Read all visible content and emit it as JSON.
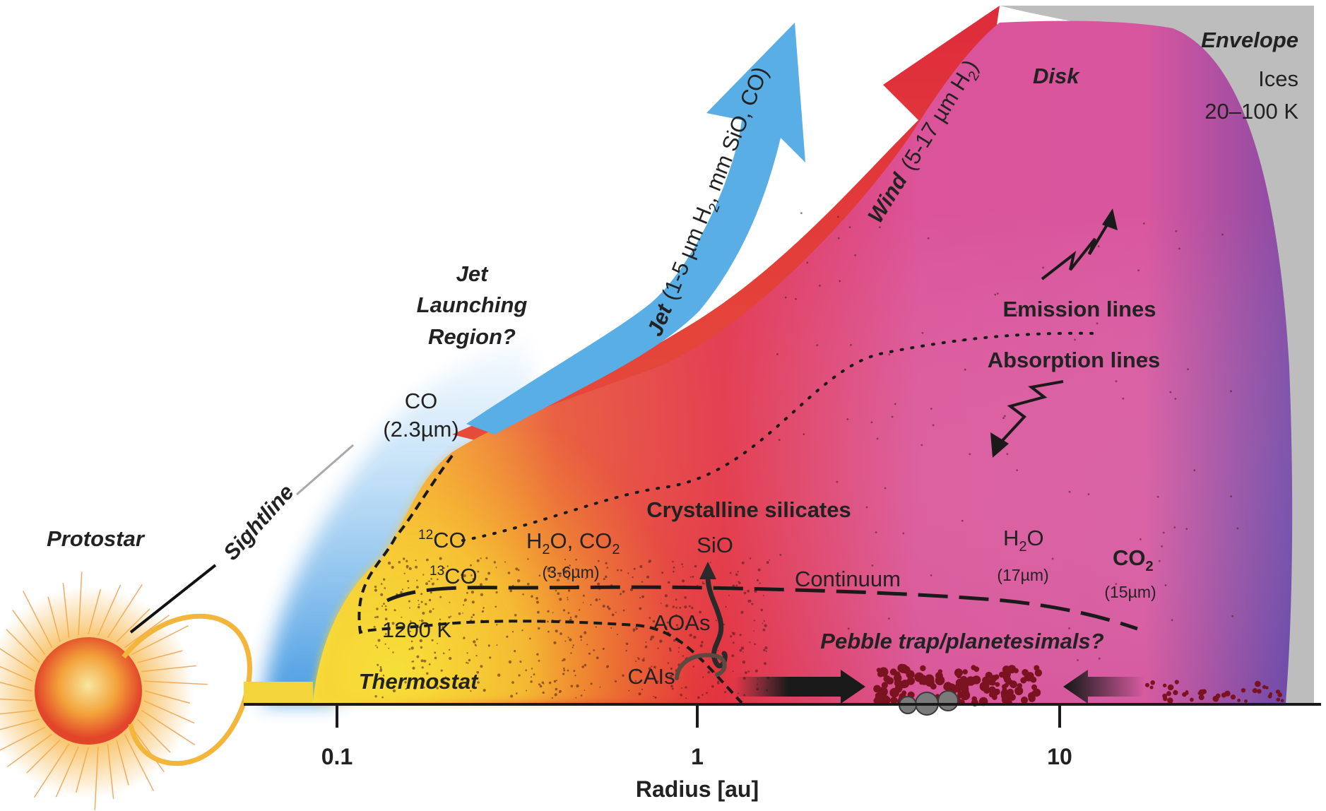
{
  "labels": {
    "envelope": "Envelope",
    "ices": "Ices",
    "ices_temp": "20–100 K",
    "disk": "Disk",
    "wind": "Wind",
    "wind_detail": "(5-17 µm H",
    "wind_sub": "2",
    "wind_close": ")",
    "jet": "Jet",
    "jet_detail_a": "(1-5 µm H",
    "jet_sub": "2",
    "jet_detail_b": ", mm SiO, CO)",
    "jet_launching_1": "Jet",
    "jet_launching_2": "Launching",
    "jet_launching_3": "Region?",
    "co_band": "CO",
    "co_band_wl": "(2.3µm)",
    "emission_lines": "Emission lines",
    "absorption_lines": "Absorption lines",
    "protostar": "Protostar",
    "sightline": "Sightline",
    "co12_sup": "12",
    "co12": "CO",
    "co13_sup": "13",
    "co13": "CO",
    "h2o_co2_a": "H",
    "h2o_co2_sub1": "2",
    "h2o_co2_b": "O, CO",
    "h2o_co2_sub2": "2",
    "h2o_co2_wl": "(3-6µm)",
    "crystalline_silicates": "Crystalline silicates",
    "sio": "SiO",
    "continuum": "Continuum",
    "h2o_a": "H",
    "h2o_sub": "2",
    "h2o_b": "O",
    "h2o_wl": "(17µm)",
    "co2_a": "CO",
    "co2_sub": "2",
    "co2_wl": "(15µm)",
    "temp_1200": "1200 K",
    "aoas": "AOAs",
    "cais": "CAIs",
    "thermostat": "Thermostat",
    "pebble_trap": "Pebble trap/planetesimals?"
  },
  "axis": {
    "title": "Radius [au]",
    "scale": "log",
    "ticks": [
      "0.1",
      "1",
      "10"
    ]
  },
  "colors": {
    "disk_pink": "#d9579a",
    "wind_red": "#e0323c",
    "jet_blue": "#5aaee6",
    "envelope_gray": "#bdbdbd",
    "thermostat_yellow": "#f7e33a",
    "star_core": "#e8452a",
    "star_glow": "#f7b733",
    "disk_violet": "#6a4aa8"
  }
}
